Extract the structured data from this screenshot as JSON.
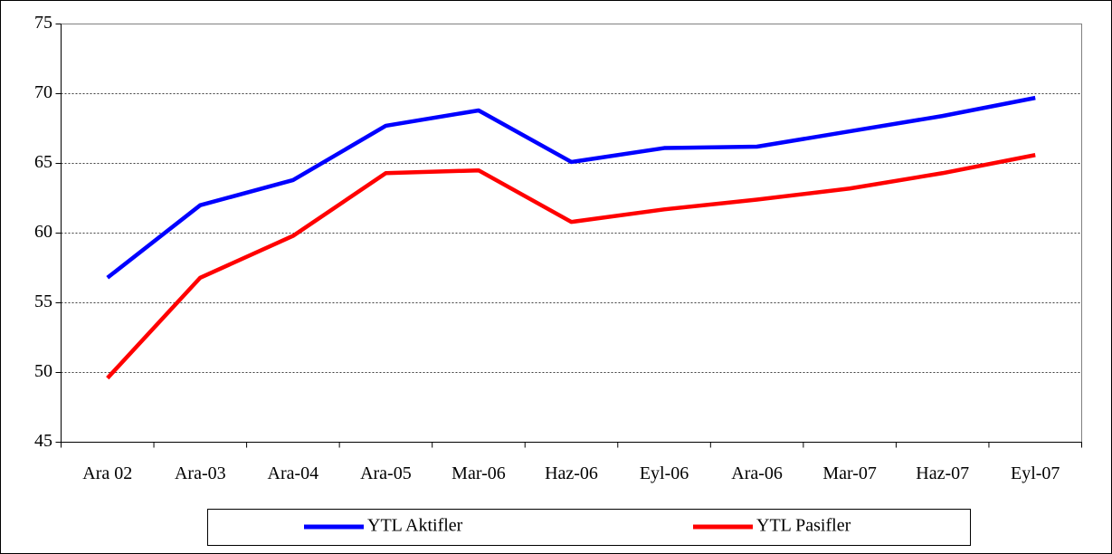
{
  "chart_data": {
    "type": "line",
    "categories": [
      "Ara 02",
      "Ara-03",
      "Ara-04",
      "Ara-05",
      "Mar-06",
      "Haz-06",
      "Eyl-06",
      "Ara-06",
      "Mar-07",
      "Haz-07",
      "Eyl-07"
    ],
    "series": [
      {
        "name": "YTL Aktifler",
        "color": "#0000ff",
        "values": [
          56.8,
          62.0,
          63.8,
          67.7,
          68.8,
          65.1,
          66.1,
          66.2,
          67.3,
          68.4,
          69.7
        ]
      },
      {
        "name": "YTL Pasifler",
        "color": "#ff0000",
        "values": [
          49.6,
          56.8,
          59.8,
          64.3,
          64.5,
          60.8,
          61.7,
          62.4,
          63.2,
          64.3,
          65.6
        ]
      }
    ],
    "ylim": [
      45,
      75
    ],
    "yticks": [
      45,
      50,
      55,
      60,
      65,
      70,
      75
    ],
    "grid": true,
    "legend": "bottom"
  }
}
